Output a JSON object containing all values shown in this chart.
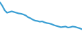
{
  "x": [
    0,
    1,
    2,
    3,
    4,
    5,
    6,
    7,
    8,
    9,
    10,
    11,
    12,
    13,
    14,
    15,
    16,
    17,
    18,
    19,
    20,
    21,
    22,
    23,
    24,
    25,
    26,
    27,
    28,
    29,
    30,
    31,
    32,
    33,
    34,
    35
  ],
  "y": [
    98,
    88,
    75,
    68,
    70,
    72,
    70,
    68,
    66,
    65,
    63,
    60,
    55,
    52,
    48,
    45,
    44,
    42,
    43,
    40,
    38,
    37,
    35,
    32,
    30,
    28,
    26,
    27,
    28,
    25,
    26,
    28,
    27,
    25,
    23,
    20
  ],
  "line_color": "#3a9fd4",
  "line_width": 1.6,
  "background_color": "#ffffff",
  "ylim": [
    15,
    105
  ],
  "xlim": [
    0,
    35
  ]
}
